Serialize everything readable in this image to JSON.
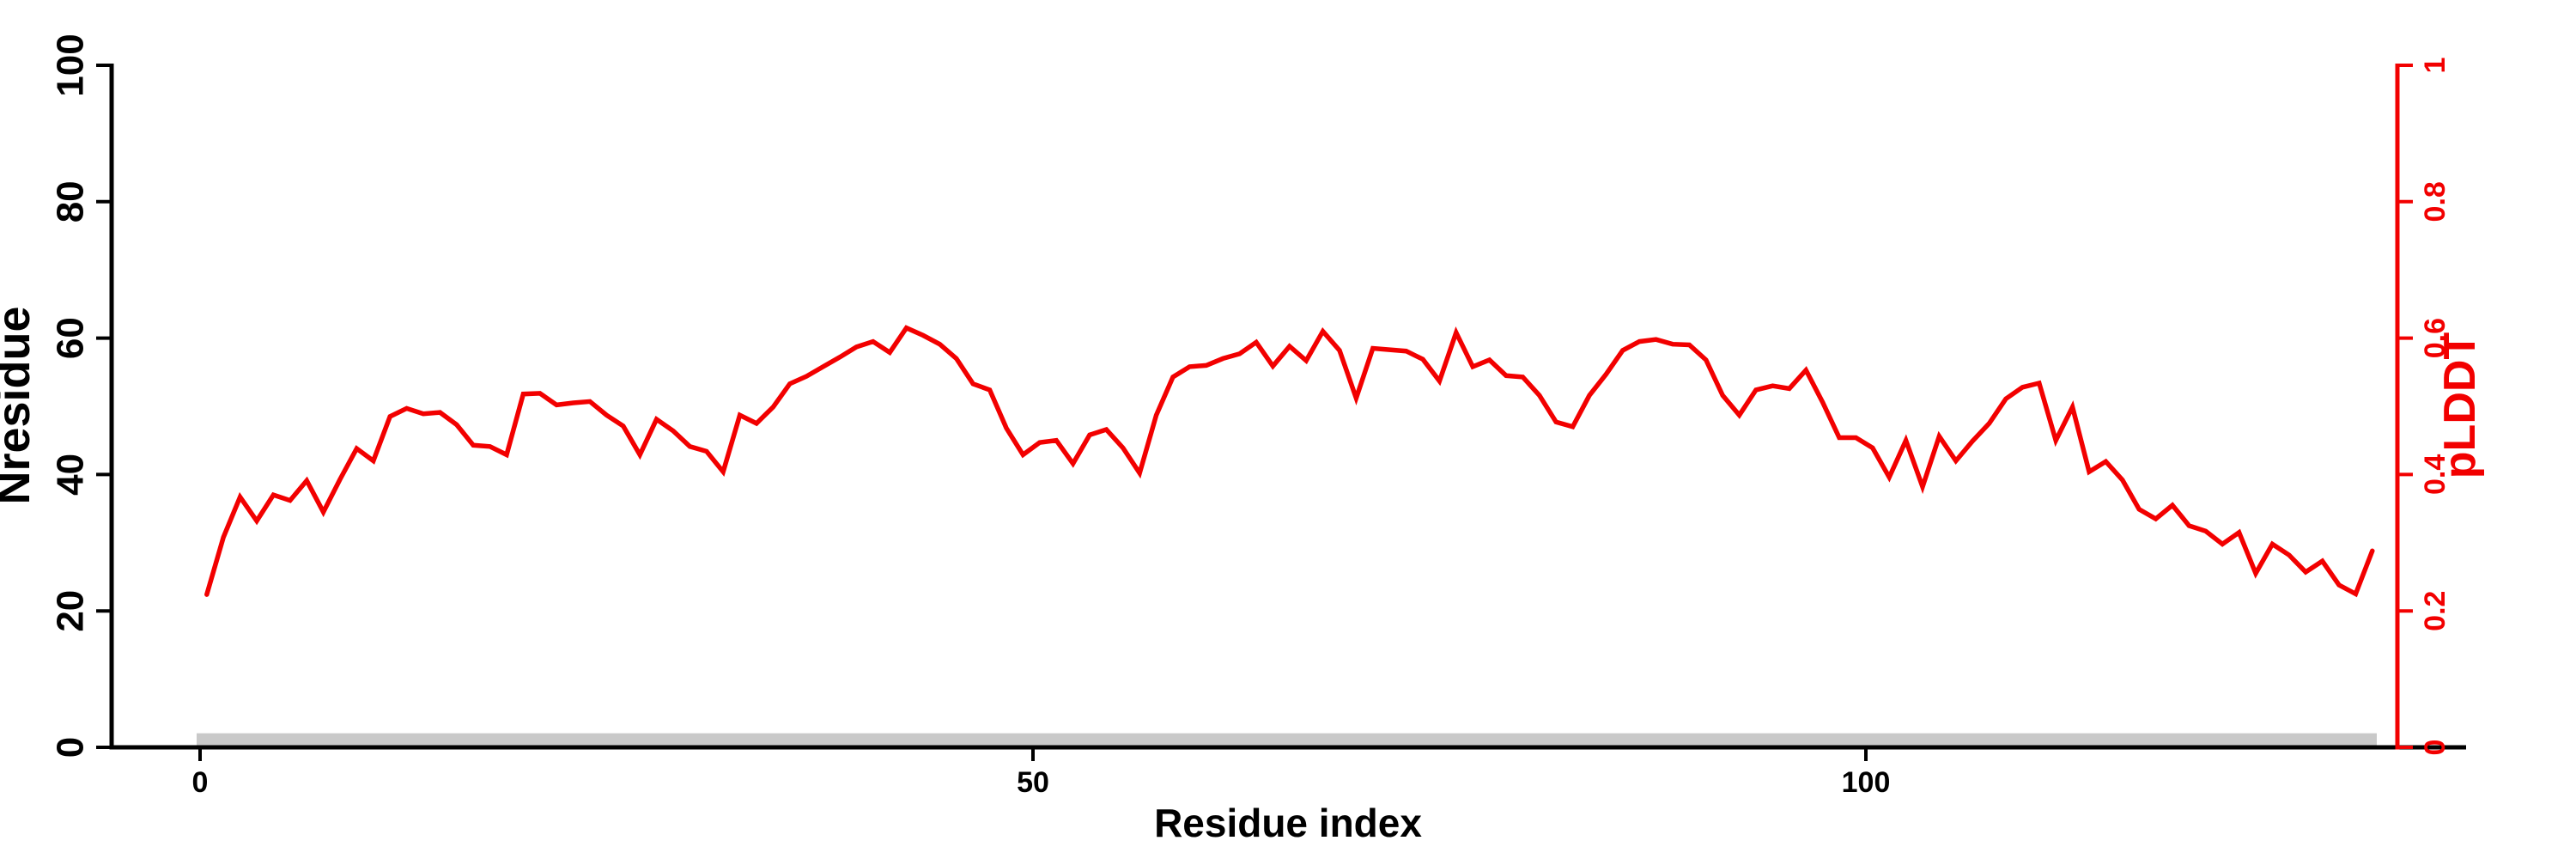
{
  "figure": {
    "background_color": "#ffffff",
    "accent_red": "#f20000",
    "axis_black": "#000000",
    "band_gray": "#c9c9c9"
  },
  "chart_data": {
    "type": "line",
    "title": "",
    "xlabel": "Residue index",
    "ylabel_left": "Nresidue",
    "ylabel_right": "pLDDT",
    "grid": false,
    "legend_position": "none",
    "xlim": [
      0,
      136
    ],
    "ylim_left": [
      0,
      100
    ],
    "ylim_right": [
      0,
      1
    ],
    "x_tick_labels": [
      "0",
      "50",
      "100"
    ],
    "x_tick_values": [
      0,
      50,
      100
    ],
    "y_left_tick_labels": [
      "0",
      "20",
      "40",
      "60",
      "80",
      "100"
    ],
    "y_left_tick_values": [
      0,
      20,
      40,
      60,
      80,
      100
    ],
    "y_right_tick_labels": [
      "0",
      "0.2",
      "0.4",
      "0.6",
      "0.8",
      "1"
    ],
    "y_right_tick_values": [
      0,
      0.2,
      0.4,
      0.6,
      0.8,
      1
    ],
    "series": [
      {
        "name": "pLDDT",
        "color": "#f20000",
        "x_start_residue": 1,
        "x_step": 1,
        "values": [
          0.224,
          0.308,
          0.367,
          0.332,
          0.37,
          0.362,
          0.391,
          0.345,
          0.393,
          0.438,
          0.42,
          0.485,
          0.497,
          0.489,
          0.491,
          0.473,
          0.443,
          0.441,
          0.429,
          0.518,
          0.519,
          0.502,
          0.505,
          0.507,
          0.487,
          0.471,
          0.429,
          0.481,
          0.464,
          0.441,
          0.434,
          0.404,
          0.487,
          0.475,
          0.499,
          0.533,
          0.544,
          0.558,
          0.572,
          0.587,
          0.595,
          0.579,
          0.615,
          0.604,
          0.591,
          0.57,
          0.533,
          0.524,
          0.468,
          0.429,
          0.447,
          0.45,
          0.416,
          0.458,
          0.466,
          0.439,
          0.402,
          0.487,
          0.543,
          0.558,
          0.56,
          0.57,
          0.577,
          0.594,
          0.559,
          0.588,
          0.567,
          0.61,
          0.582,
          0.512,
          0.585,
          0.583,
          0.581,
          0.569,
          0.537,
          0.608,
          0.558,
          0.568,
          0.545,
          0.543,
          0.516,
          0.477,
          0.47,
          0.516,
          0.547,
          0.582,
          0.595,
          0.598,
          0.591,
          0.59,
          0.568,
          0.516,
          0.487,
          0.524,
          0.53,
          0.526,
          0.553,
          0.506,
          0.454,
          0.454,
          0.439,
          0.396,
          0.45,
          0.382,
          0.456,
          0.42,
          0.449,
          0.475,
          0.511,
          0.528,
          0.534,
          0.45,
          0.499,
          0.404,
          0.419,
          0.392,
          0.349,
          0.335,
          0.355,
          0.325,
          0.317,
          0.298,
          0.315,
          0.255,
          0.298,
          0.282,
          0.257,
          0.273,
          0.238,
          0.225,
          0.288
        ]
      }
    ],
    "annotations": {
      "baseline_band": {
        "description": "light gray horizontal band along the bottom of the plot area",
        "color": "#c9c9c9",
        "from_residue": 0,
        "to_residue": 131,
        "value_bottom_left_axis": 0,
        "value_top_left_axis": 2
      }
    }
  }
}
